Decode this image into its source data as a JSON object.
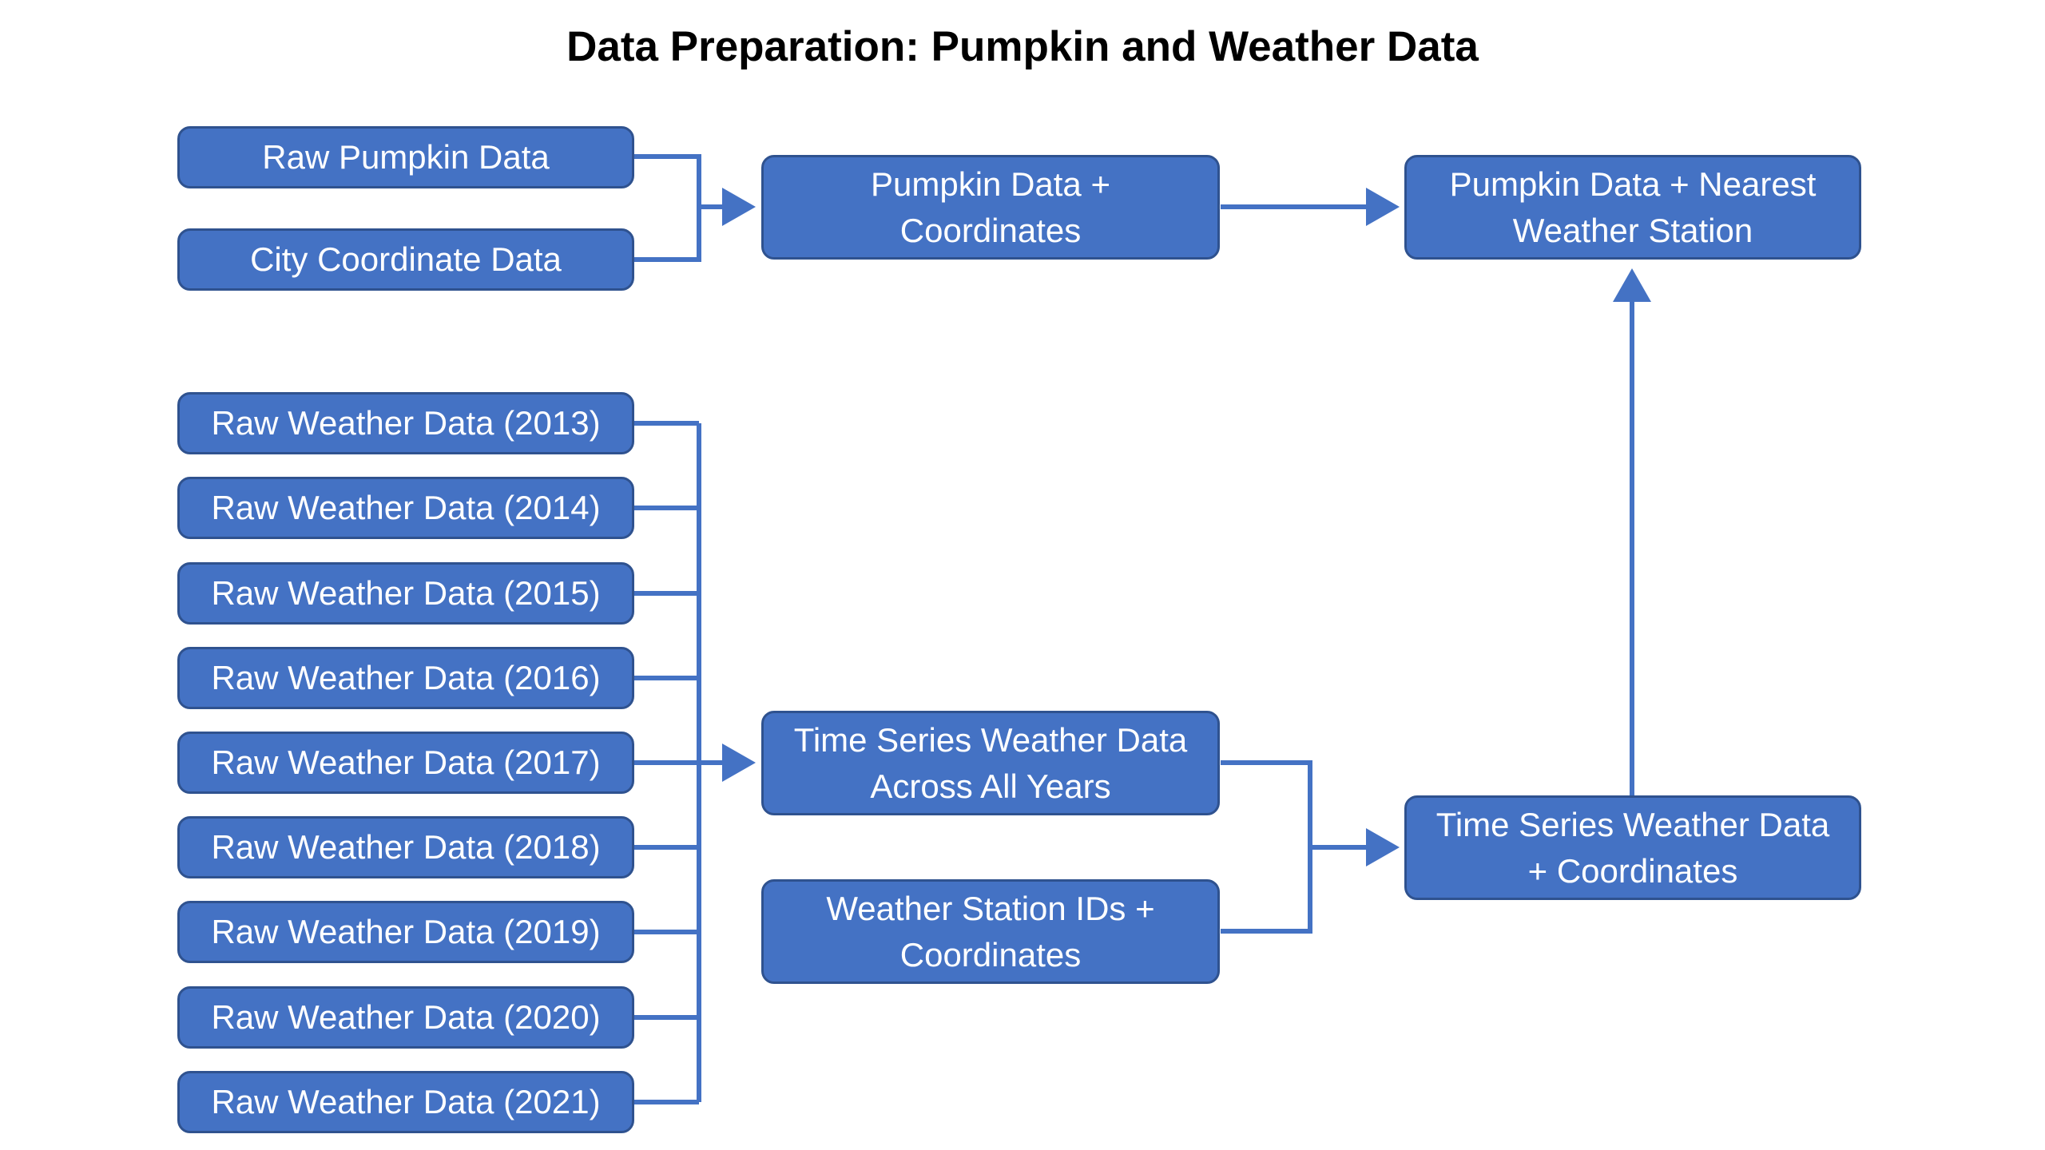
{
  "title": "Data Preparation: Pumpkin and Weather Data",
  "colors": {
    "node_fill": "#4472c4",
    "node_border": "#2f528f",
    "connector": "#4472c4",
    "node_text": "#ffffff",
    "title_text": "#000000"
  },
  "nodes": {
    "raw_pumpkin": [
      "Raw Pumpkin Data"
    ],
    "city_coords": [
      "City Coordinate Data"
    ],
    "pumpkin_coords": [
      "Pumpkin Data +",
      "Coordinates"
    ],
    "pumpkin_station": [
      "Pumpkin Data + Nearest",
      "Weather Station"
    ],
    "weather_2013": [
      "Raw Weather Data (2013)"
    ],
    "weather_2014": [
      "Raw Weather Data (2014)"
    ],
    "weather_2015": [
      "Raw Weather Data (2015)"
    ],
    "weather_2016": [
      "Raw Weather Data (2016)"
    ],
    "weather_2017": [
      "Raw Weather Data (2017)"
    ],
    "weather_2018": [
      "Raw Weather Data (2018)"
    ],
    "weather_2019": [
      "Raw Weather Data (2019)"
    ],
    "weather_2020": [
      "Raw Weather Data (2020)"
    ],
    "weather_2021": [
      "Raw Weather Data (2021)"
    ],
    "ts_all_years": [
      "Time Series Weather Data",
      "Across All Years"
    ],
    "station_ids": [
      "Weather Station IDs +",
      "Coordinates"
    ],
    "ts_coords": [
      "Time Series Weather Data",
      "+ Coordinates"
    ]
  },
  "edges": [
    {
      "from": [
        "raw_pumpkin",
        "city_coords"
      ],
      "to": "pumpkin_coords"
    },
    {
      "from": [
        "pumpkin_coords"
      ],
      "to": "pumpkin_station"
    },
    {
      "from": [
        "weather_2013",
        "weather_2014",
        "weather_2015",
        "weather_2016",
        "weather_2017",
        "weather_2018",
        "weather_2019",
        "weather_2020",
        "weather_2021"
      ],
      "to": "ts_all_years"
    },
    {
      "from": [
        "ts_all_years",
        "station_ids"
      ],
      "to": "ts_coords"
    },
    {
      "from": [
        "ts_coords"
      ],
      "to": "pumpkin_station"
    }
  ]
}
